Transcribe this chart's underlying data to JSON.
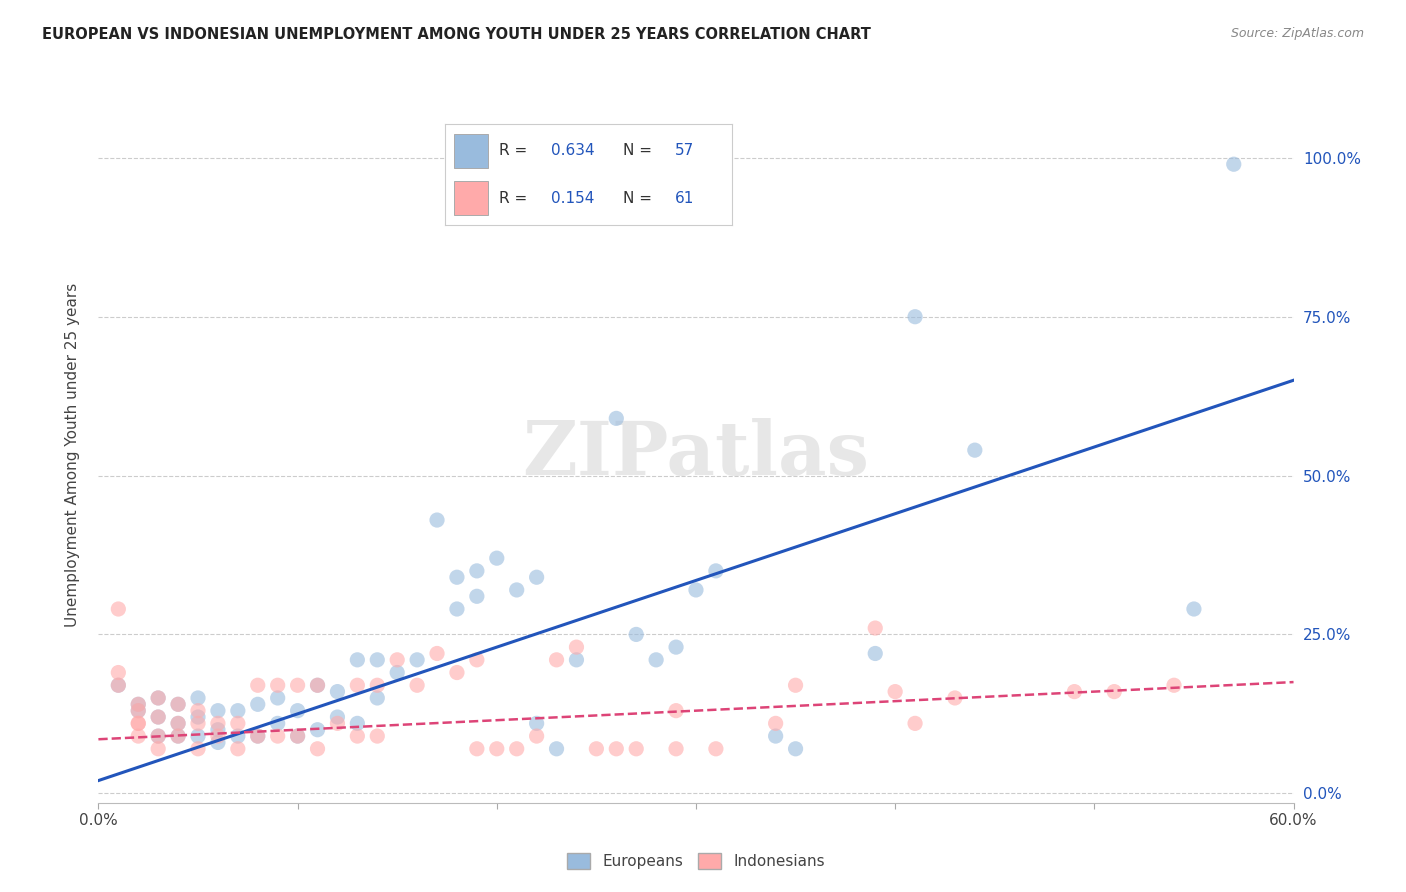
{
  "title": "EUROPEAN VS INDONESIAN UNEMPLOYMENT AMONG YOUTH UNDER 25 YEARS CORRELATION CHART",
  "source": "Source: ZipAtlas.com",
  "ylabel": "Unemployment Among Youth under 25 years",
  "xlim": [
    0.0,
    0.6
  ],
  "ylim": [
    -0.015,
    1.08
  ],
  "yticks": [
    0.0,
    0.25,
    0.5,
    0.75,
    1.0
  ],
  "ytick_labels_right": [
    "0.0%",
    "25.0%",
    "50.0%",
    "75.0%",
    "100.0%"
  ],
  "xticks": [
    0.0,
    0.1,
    0.2,
    0.3,
    0.4,
    0.5,
    0.6
  ],
  "xtick_labels": [
    "0.0%",
    "",
    "",
    "",
    "",
    "",
    "60.0%"
  ],
  "watermark": "ZIPatlas",
  "blue_color": "#99BBDD",
  "blue_line_color": "#2255BB",
  "pink_color": "#FFAAAA",
  "pink_line_color": "#DD4477",
  "blue_scatter": [
    [
      0.01,
      0.17
    ],
    [
      0.02,
      0.13
    ],
    [
      0.02,
      0.14
    ],
    [
      0.03,
      0.09
    ],
    [
      0.03,
      0.12
    ],
    [
      0.03,
      0.15
    ],
    [
      0.04,
      0.09
    ],
    [
      0.04,
      0.11
    ],
    [
      0.04,
      0.14
    ],
    [
      0.05,
      0.09
    ],
    [
      0.05,
      0.12
    ],
    [
      0.05,
      0.15
    ],
    [
      0.06,
      0.08
    ],
    [
      0.06,
      0.1
    ],
    [
      0.06,
      0.13
    ],
    [
      0.07,
      0.09
    ],
    [
      0.07,
      0.13
    ],
    [
      0.08,
      0.09
    ],
    [
      0.08,
      0.14
    ],
    [
      0.09,
      0.11
    ],
    [
      0.09,
      0.15
    ],
    [
      0.1,
      0.09
    ],
    [
      0.1,
      0.13
    ],
    [
      0.11,
      0.1
    ],
    [
      0.11,
      0.17
    ],
    [
      0.12,
      0.12
    ],
    [
      0.12,
      0.16
    ],
    [
      0.13,
      0.11
    ],
    [
      0.13,
      0.21
    ],
    [
      0.14,
      0.15
    ],
    [
      0.14,
      0.21
    ],
    [
      0.15,
      0.19
    ],
    [
      0.16,
      0.21
    ],
    [
      0.17,
      0.43
    ],
    [
      0.18,
      0.29
    ],
    [
      0.18,
      0.34
    ],
    [
      0.19,
      0.31
    ],
    [
      0.19,
      0.35
    ],
    [
      0.2,
      0.37
    ],
    [
      0.21,
      0.32
    ],
    [
      0.22,
      0.34
    ],
    [
      0.22,
      0.11
    ],
    [
      0.23,
      0.07
    ],
    [
      0.24,
      0.21
    ],
    [
      0.26,
      0.59
    ],
    [
      0.27,
      0.25
    ],
    [
      0.28,
      0.21
    ],
    [
      0.29,
      0.23
    ],
    [
      0.3,
      0.32
    ],
    [
      0.31,
      0.35
    ],
    [
      0.34,
      0.09
    ],
    [
      0.35,
      0.07
    ],
    [
      0.39,
      0.22
    ],
    [
      0.41,
      0.75
    ],
    [
      0.44,
      0.54
    ],
    [
      0.55,
      0.29
    ],
    [
      0.57,
      0.99
    ]
  ],
  "pink_scatter": [
    [
      0.01,
      0.29
    ],
    [
      0.01,
      0.19
    ],
    [
      0.01,
      0.17
    ],
    [
      0.02,
      0.14
    ],
    [
      0.02,
      0.11
    ],
    [
      0.02,
      0.13
    ],
    [
      0.02,
      0.09
    ],
    [
      0.02,
      0.11
    ],
    [
      0.03,
      0.15
    ],
    [
      0.03,
      0.07
    ],
    [
      0.03,
      0.09
    ],
    [
      0.03,
      0.12
    ],
    [
      0.04,
      0.09
    ],
    [
      0.04,
      0.11
    ],
    [
      0.04,
      0.14
    ],
    [
      0.05,
      0.07
    ],
    [
      0.05,
      0.11
    ],
    [
      0.05,
      0.13
    ],
    [
      0.06,
      0.09
    ],
    [
      0.06,
      0.11
    ],
    [
      0.07,
      0.07
    ],
    [
      0.07,
      0.11
    ],
    [
      0.08,
      0.09
    ],
    [
      0.08,
      0.17
    ],
    [
      0.09,
      0.09
    ],
    [
      0.09,
      0.17
    ],
    [
      0.1,
      0.09
    ],
    [
      0.1,
      0.17
    ],
    [
      0.11,
      0.07
    ],
    [
      0.11,
      0.17
    ],
    [
      0.12,
      0.11
    ],
    [
      0.13,
      0.09
    ],
    [
      0.13,
      0.17
    ],
    [
      0.14,
      0.09
    ],
    [
      0.14,
      0.17
    ],
    [
      0.15,
      0.21
    ],
    [
      0.16,
      0.17
    ],
    [
      0.17,
      0.22
    ],
    [
      0.18,
      0.19
    ],
    [
      0.19,
      0.21
    ],
    [
      0.19,
      0.07
    ],
    [
      0.2,
      0.07
    ],
    [
      0.21,
      0.07
    ],
    [
      0.22,
      0.09
    ],
    [
      0.23,
      0.21
    ],
    [
      0.24,
      0.23
    ],
    [
      0.25,
      0.07
    ],
    [
      0.26,
      0.07
    ],
    [
      0.27,
      0.07
    ],
    [
      0.29,
      0.07
    ],
    [
      0.29,
      0.13
    ],
    [
      0.31,
      0.07
    ],
    [
      0.34,
      0.11
    ],
    [
      0.35,
      0.17
    ],
    [
      0.39,
      0.26
    ],
    [
      0.4,
      0.16
    ],
    [
      0.41,
      0.11
    ],
    [
      0.43,
      0.15
    ],
    [
      0.49,
      0.16
    ],
    [
      0.51,
      0.16
    ],
    [
      0.54,
      0.17
    ]
  ],
  "blue_trendline_x": [
    0.0,
    0.6
  ],
  "blue_trendline_y": [
    0.02,
    0.65
  ],
  "pink_trendline_x": [
    0.0,
    0.6
  ],
  "pink_trendline_y": [
    0.085,
    0.175
  ]
}
